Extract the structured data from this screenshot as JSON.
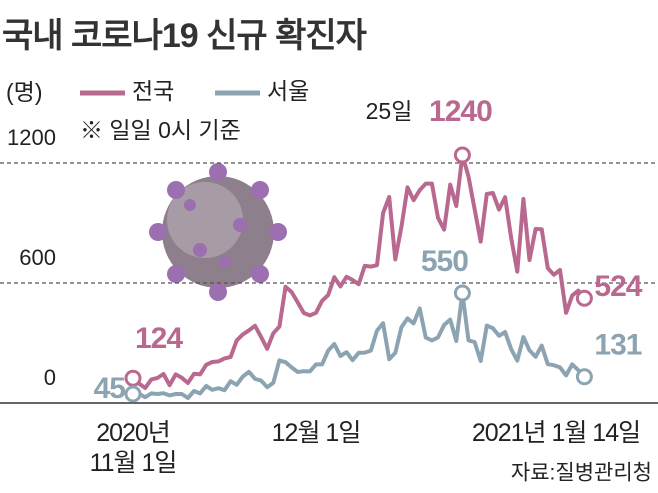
{
  "chart_data": {
    "type": "line",
    "title": "국내 코로나19 신규 확진자",
    "y_unit": "(명)",
    "note": "※ 일일 0시 기준",
    "source": "자료:질병관리청",
    "peak_note": "25일",
    "categories": [
      "2020년 11월 1일",
      null,
      null,
      null,
      null,
      null,
      null,
      null,
      null,
      null,
      null,
      null,
      null,
      null,
      null,
      null,
      null,
      null,
      null,
      null,
      null,
      null,
      null,
      null,
      null,
      null,
      null,
      null,
      null,
      null,
      "12월 1일",
      null,
      null,
      null,
      null,
      null,
      null,
      null,
      null,
      null,
      null,
      null,
      null,
      null,
      null,
      null,
      null,
      null,
      null,
      null,
      null,
      null,
      null,
      null,
      null,
      null,
      null,
      null,
      null,
      null,
      null,
      null,
      null,
      null,
      null,
      null,
      null,
      null,
      null,
      null,
      null,
      null,
      null,
      null,
      "2021년 1월 14일"
    ],
    "series": [
      {
        "name": "전국",
        "color": "#b9688f",
        "values": [
          124,
          97,
          75,
          118,
          125,
          145,
          89,
          143,
          126,
          100,
          146,
          143,
          191,
          205,
          208,
          223,
          230,
          313,
          343,
          363,
          386,
          330,
          271,
          349,
          382,
          581,
          555,
          503,
          450,
          438,
          451,
          511,
          540,
          629,
          583,
          631,
          615,
          594,
          686,
          682,
          689,
          950,
          1030,
          718,
          880,
          1078,
          1014,
          1064,
          1097,
          1097,
          926,
          867,
          1092,
          985,
          1240,
          1132,
          970,
          807,
          1045,
          1050,
          967,
          1029,
          824,
          657,
          1020,
          715,
          870,
          869,
          674,
          641,
          665,
          451,
          537,
          562,
          524
        ]
      },
      {
        "name": "서울",
        "color": "#8ca3b2",
        "values": [
          45,
          46,
          29,
          48,
          45,
          49,
          38,
          45,
          45,
          25,
          60,
          48,
          85,
          66,
          74,
          64,
          109,
          91,
          132,
          156,
          121,
          112,
          79,
          101,
          213,
          204,
          178,
          155,
          159,
          158,
          193,
          193,
          262,
          295,
          235,
          254,
          214,
          251,
          252,
          262,
          362,
          399,
          219,
          251,
          378,
          423,
          398,
          473,
          327,
          313,
          328,
          390,
          417,
          310,
          550,
          313,
          305,
          210,
          387,
          374,
          336,
          355,
          269,
          212,
          330,
          263,
          231,
          287,
          194,
          189,
          178,
          138,
          193,
          164,
          131
        ]
      }
    ],
    "labeled_points": [
      0,
      54,
      74
    ],
    "ylim": [
      0,
      1200
    ],
    "yticks": [
      0,
      600,
      1200
    ],
    "grid": true
  }
}
